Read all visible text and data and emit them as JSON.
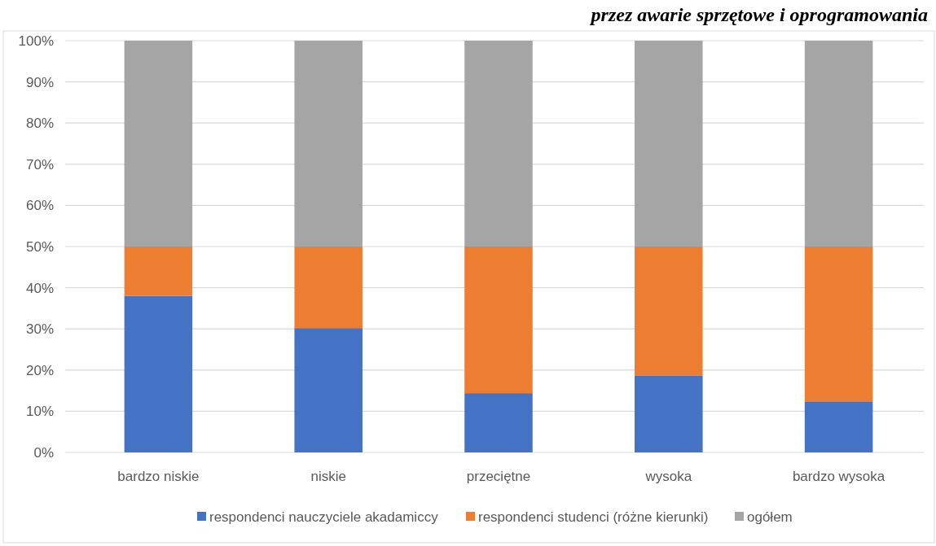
{
  "chart_data": {
    "type": "bar",
    "stacked": true,
    "title": "przez awarie sprzętowe i oprogramowania",
    "categories": [
      "bardzo niskie",
      "niskie",
      "przeciętne",
      "wysoka",
      "bardzo wysoka"
    ],
    "series": [
      {
        "name": "respondenci nauczyciele akadamiccy",
        "color": "#4472c4",
        "values": [
          38,
          30.2,
          14.4,
          18.7,
          12.4
        ]
      },
      {
        "name": "respondenci studenci (różne kierunki)",
        "color": "#ed7d31",
        "values": [
          12,
          19.8,
          35.6,
          31.3,
          37.6
        ]
      },
      {
        "name": "ogółem",
        "color": "#a5a5a5",
        "values": [
          50,
          50,
          50,
          50,
          50
        ]
      }
    ],
    "ylim": [
      0,
      100
    ],
    "yticks": [
      {
        "value": 0,
        "label": "0%"
      },
      {
        "value": 10,
        "label": "10%"
      },
      {
        "value": 20,
        "label": "20%"
      },
      {
        "value": 30,
        "label": "30%"
      },
      {
        "value": 40,
        "label": "40%"
      },
      {
        "value": 50,
        "label": "50%"
      },
      {
        "value": 60,
        "label": "60%"
      },
      {
        "value": 70,
        "label": "70%"
      },
      {
        "value": 80,
        "label": "80%"
      },
      {
        "value": 90,
        "label": "90%"
      },
      {
        "value": 100,
        "label": "100%"
      }
    ],
    "grid": "y",
    "legend": "bottom"
  }
}
